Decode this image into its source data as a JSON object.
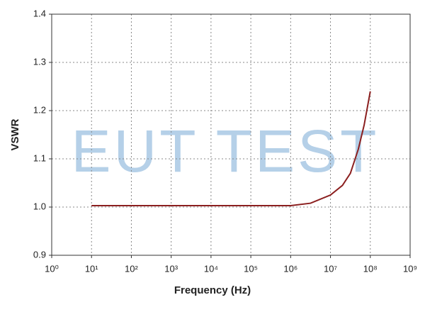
{
  "chart_data": {
    "type": "line",
    "watermark": "EUT TEST",
    "xlabel": "Frequency (Hz)",
    "ylabel": "VSWR",
    "x_scale": "log",
    "grid": true,
    "xlim": [
      1,
      1000000000
    ],
    "xticks": [
      {
        "value": 1,
        "label": "10⁰"
      },
      {
        "value": 10,
        "label": "10¹"
      },
      {
        "value": 100,
        "label": "10²"
      },
      {
        "value": 1000,
        "label": "10³"
      },
      {
        "value": 10000,
        "label": "10⁴"
      },
      {
        "value": 100000,
        "label": "10⁵"
      },
      {
        "value": 1000000,
        "label": "10⁶"
      },
      {
        "value": 10000000,
        "label": "10⁷"
      },
      {
        "value": 100000000,
        "label": "10⁸"
      },
      {
        "value": 1000000000,
        "label": "10⁹"
      }
    ],
    "ylim": [
      0.9,
      1.4
    ],
    "yticks": [
      0.9,
      {
        "value": 1,
        "label": "1.0"
      },
      1.1,
      1.2,
      1.3,
      1.4
    ],
    "x": [
      10,
      100,
      1000,
      10000,
      100000,
      1000000,
      3160000,
      10000000,
      20000000,
      31600000,
      50000000,
      70000000,
      100000000
    ],
    "series": [
      {
        "color": "#8b1f1f",
        "values": [
          1.003,
          1.003,
          1.003,
          1.003,
          1.003,
          1.003,
          1.008,
          1.025,
          1.045,
          1.07,
          1.12,
          1.17,
          1.24
        ]
      }
    ]
  }
}
